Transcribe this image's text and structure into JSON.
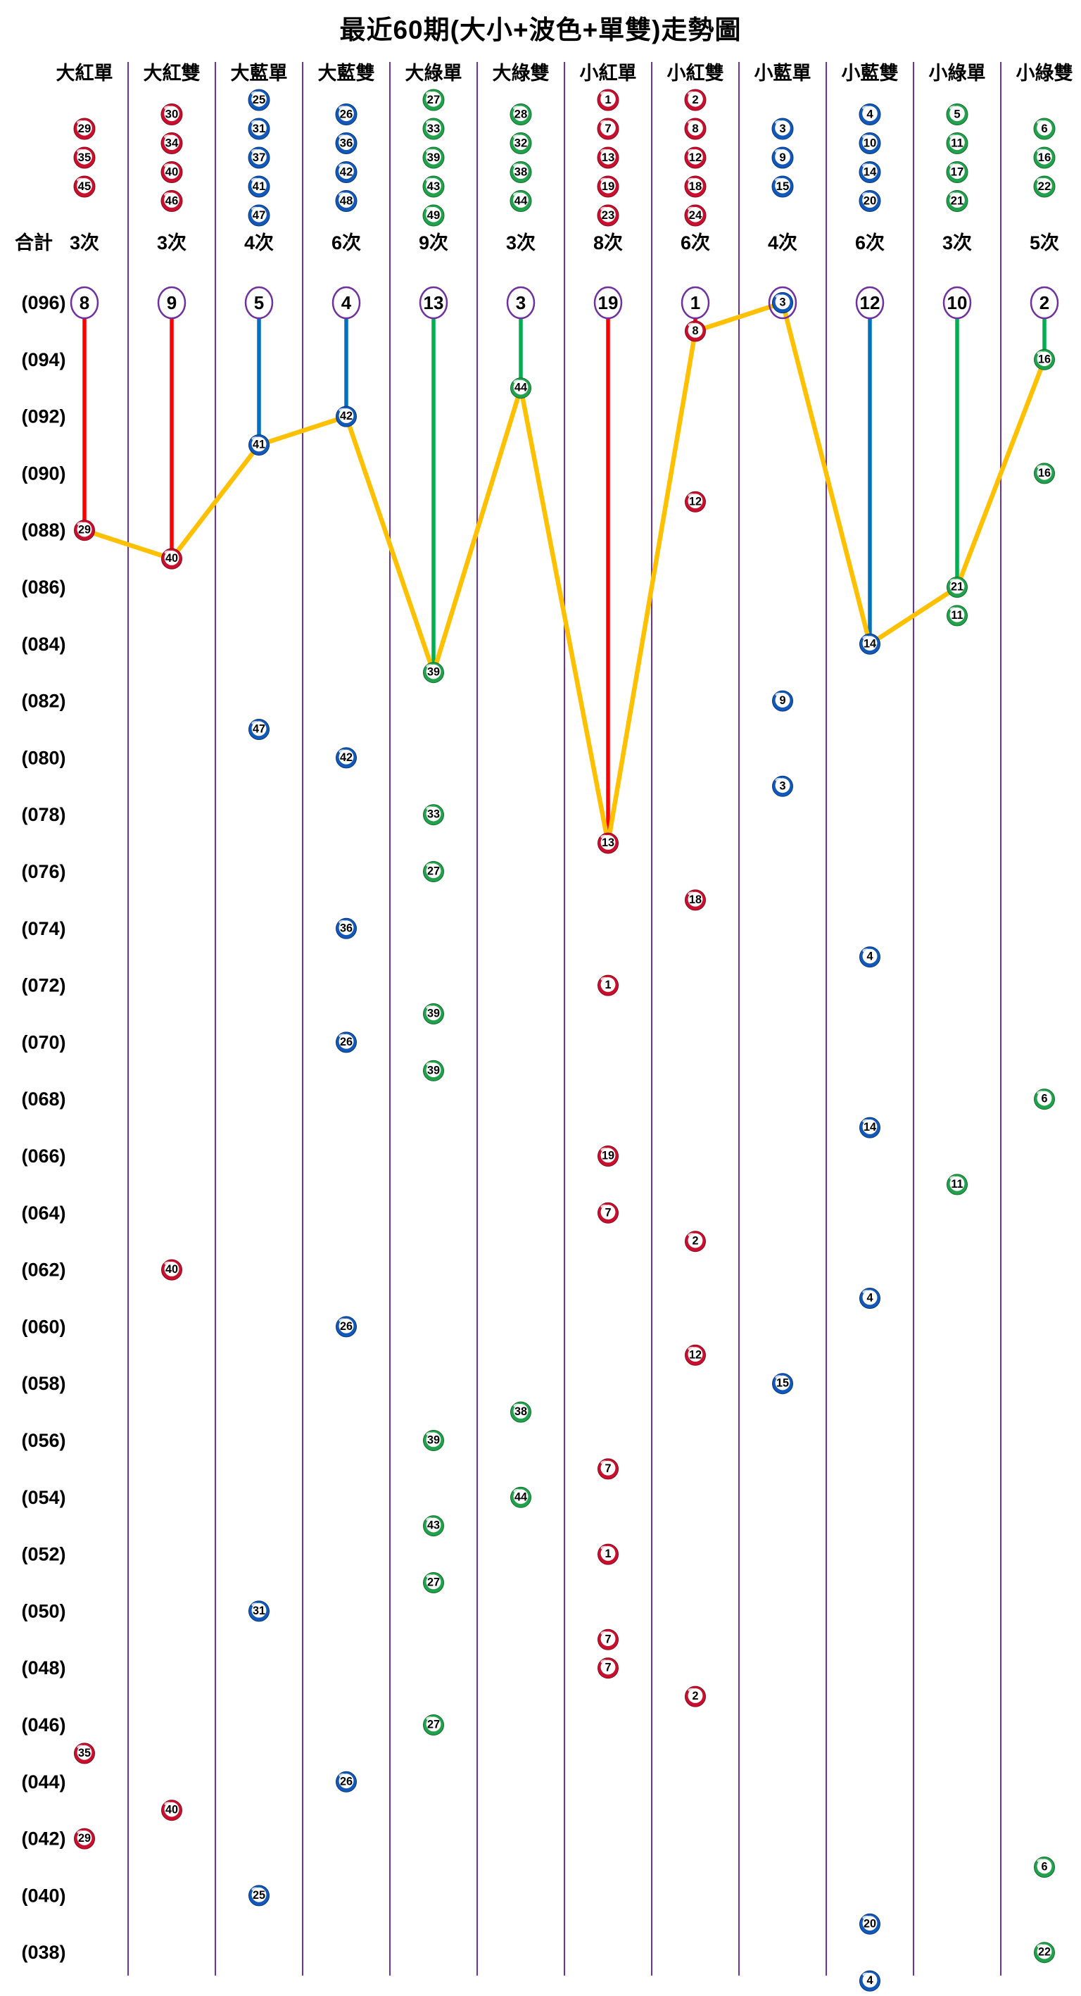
{
  "colors": {
    "background": "#FFFFFF",
    "text": "#000000",
    "divider": "#7030A0",
    "circle_outline": "#7030A0",
    "trend_line": "#FFC000",
    "drop_line": {
      "red": "#FF0000",
      "blue": "#0070C0",
      "green": "#00B050"
    },
    "ball": {
      "red": {
        "ring": "#C8102E",
        "dark": "#8B0A1E"
      },
      "blue": {
        "ring": "#1258B8",
        "dark": "#0A3A80"
      },
      "green": {
        "ring": "#21A14B",
        "dark": "#137031"
      }
    }
  },
  "chart_data": {
    "type": "scatter",
    "title": "最近60期(大小+波色+單雙)走勢圖",
    "totals_label": "合計",
    "legend_position": "none",
    "grid": "vertical-column-dividers-only",
    "trend_line_rule": "orange polyline connects the most recent occurrence of each of the 12 categories, left to right; purple circles on top row show current miss count per category (the category drawn in the newest period shows its ball instead)",
    "columns": [
      {
        "label": "大紅單",
        "group_color": "red",
        "member_numbers": [
          29,
          35,
          45
        ],
        "total_label": "3次",
        "miss_count": 8
      },
      {
        "label": "大紅雙",
        "group_color": "red",
        "member_numbers": [
          30,
          34,
          40,
          46
        ],
        "total_label": "3次",
        "miss_count": 9
      },
      {
        "label": "大藍單",
        "group_color": "blue",
        "member_numbers": [
          25,
          31,
          37,
          41,
          47
        ],
        "total_label": "4次",
        "miss_count": 5
      },
      {
        "label": "大藍雙",
        "group_color": "blue",
        "member_numbers": [
          26,
          36,
          42,
          48
        ],
        "total_label": "6次",
        "miss_count": 4
      },
      {
        "label": "大綠單",
        "group_color": "green",
        "member_numbers": [
          27,
          33,
          39,
          43,
          49
        ],
        "total_label": "9次",
        "miss_count": 13
      },
      {
        "label": "大綠雙",
        "group_color": "green",
        "member_numbers": [
          28,
          32,
          38,
          44
        ],
        "total_label": "3次",
        "miss_count": 3
      },
      {
        "label": "小紅單",
        "group_color": "red",
        "member_numbers": [
          1,
          7,
          13,
          19,
          23
        ],
        "total_label": "8次",
        "miss_count": 19
      },
      {
        "label": "小紅雙",
        "group_color": "red",
        "member_numbers": [
          2,
          8,
          12,
          18,
          24
        ],
        "total_label": "6次",
        "miss_count": 1
      },
      {
        "label": "小藍單",
        "group_color": "blue",
        "member_numbers": [
          3,
          9,
          15
        ],
        "total_label": "4次",
        "miss_count": 0
      },
      {
        "label": "小藍雙",
        "group_color": "blue",
        "member_numbers": [
          4,
          10,
          14,
          20
        ],
        "total_label": "6次",
        "miss_count": 12
      },
      {
        "label": "小綠單",
        "group_color": "green",
        "member_numbers": [
          5,
          11,
          17,
          21
        ],
        "total_label": "3次",
        "miss_count": 10
      },
      {
        "label": "小綠雙",
        "group_color": "green",
        "member_numbers": [
          6,
          16,
          22
        ],
        "total_label": "5次",
        "miss_count": 2
      }
    ],
    "period_axis": {
      "first": 96,
      "last": 37,
      "tick_labels": [
        "(096)",
        "(094)",
        "(092)",
        "(090)",
        "(088)",
        "(086)",
        "(084)",
        "(082)",
        "(080)",
        "(078)",
        "(076)",
        "(074)",
        "(072)",
        "(070)",
        "(068)",
        "(066)",
        "(064)",
        "(062)",
        "(060)",
        "(058)",
        "(056)",
        "(054)",
        "(052)",
        "(050)",
        "(048)",
        "(046)",
        "(044)",
        "(042)",
        "(040)",
        "(038)"
      ]
    },
    "draws": [
      {
        "p": 96,
        "c": 9,
        "n": 3
      },
      {
        "p": 95,
        "c": 8,
        "n": 8
      },
      {
        "p": 94,
        "c": 12,
        "n": 16
      },
      {
        "p": 93,
        "c": 6,
        "n": 44
      },
      {
        "p": 92,
        "c": 4,
        "n": 42
      },
      {
        "p": 91,
        "c": 3,
        "n": 41
      },
      {
        "p": 90,
        "c": 12,
        "n": 16
      },
      {
        "p": 89,
        "c": 8,
        "n": 12
      },
      {
        "p": 88,
        "c": 1,
        "n": 29
      },
      {
        "p": 87,
        "c": 2,
        "n": 40
      },
      {
        "p": 86,
        "c": 11,
        "n": 21
      },
      {
        "p": 85,
        "c": 11,
        "n": 11
      },
      {
        "p": 84,
        "c": 10,
        "n": 14
      },
      {
        "p": 83,
        "c": 5,
        "n": 39
      },
      {
        "p": 82,
        "c": 9,
        "n": 9
      },
      {
        "p": 81,
        "c": 3,
        "n": 47
      },
      {
        "p": 80,
        "c": 4,
        "n": 42
      },
      {
        "p": 79,
        "c": 9,
        "n": 3
      },
      {
        "p": 78,
        "c": 5,
        "n": 33
      },
      {
        "p": 77,
        "c": 7,
        "n": 13
      },
      {
        "p": 76,
        "c": 5,
        "n": 27
      },
      {
        "p": 75,
        "c": 8,
        "n": 18
      },
      {
        "p": 74,
        "c": 4,
        "n": 36
      },
      {
        "p": 73,
        "c": 10,
        "n": 4
      },
      {
        "p": 72,
        "c": 7,
        "n": 1
      },
      {
        "p": 71,
        "c": 5,
        "n": 39
      },
      {
        "p": 70,
        "c": 4,
        "n": 26
      },
      {
        "p": 69,
        "c": 5,
        "n": 39
      },
      {
        "p": 68,
        "c": 12,
        "n": 6
      },
      {
        "p": 67,
        "c": 10,
        "n": 14
      },
      {
        "p": 66,
        "c": 7,
        "n": 19
      },
      {
        "p": 65,
        "c": 11,
        "n": 11
      },
      {
        "p": 64,
        "c": 7,
        "n": 7
      },
      {
        "p": 63,
        "c": 8,
        "n": 2
      },
      {
        "p": 62,
        "c": 2,
        "n": 40
      },
      {
        "p": 61,
        "c": 10,
        "n": 4
      },
      {
        "p": 60,
        "c": 4,
        "n": 26
      },
      {
        "p": 59,
        "c": 8,
        "n": 12
      },
      {
        "p": 58,
        "c": 9,
        "n": 15
      },
      {
        "p": 57,
        "c": 6,
        "n": 38
      },
      {
        "p": 56,
        "c": 5,
        "n": 39
      },
      {
        "p": 55,
        "c": 7,
        "n": 7
      },
      {
        "p": 54,
        "c": 6,
        "n": 44
      },
      {
        "p": 53,
        "c": 5,
        "n": 43
      },
      {
        "p": 52,
        "c": 7,
        "n": 1
      },
      {
        "p": 51,
        "c": 5,
        "n": 27
      },
      {
        "p": 50,
        "c": 3,
        "n": 31
      },
      {
        "p": 49,
        "c": 7,
        "n": 7
      },
      {
        "p": 48,
        "c": 7,
        "n": 7
      },
      {
        "p": 47,
        "c": 8,
        "n": 2
      },
      {
        "p": 46,
        "c": 5,
        "n": 27
      },
      {
        "p": 45,
        "c": 1,
        "n": 35
      },
      {
        "p": 44,
        "c": 4,
        "n": 26
      },
      {
        "p": 43,
        "c": 2,
        "n": 40
      },
      {
        "p": 42,
        "c": 1,
        "n": 29
      },
      {
        "p": 41,
        "c": 12,
        "n": 6
      },
      {
        "p": 40,
        "c": 3,
        "n": 25
      },
      {
        "p": 39,
        "c": 10,
        "n": 20
      },
      {
        "p": 38,
        "c": 12,
        "n": 22
      },
      {
        "p": 37,
        "c": 10,
        "n": 4
      }
    ]
  }
}
